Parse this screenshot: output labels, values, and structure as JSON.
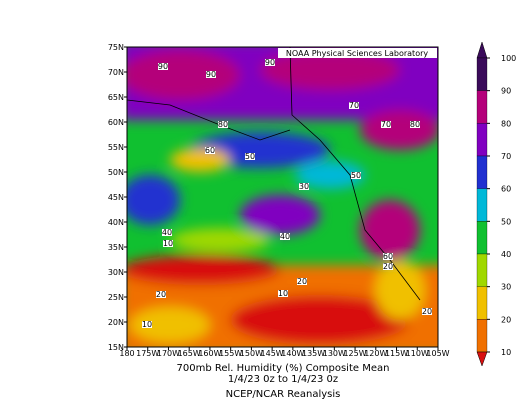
{
  "header": {
    "credit": "NOAA Physical Sciences Laboratory"
  },
  "map": {
    "lat_labels": [
      "75N",
      "70N",
      "65N",
      "60N",
      "55N",
      "50N",
      "45N",
      "40N",
      "35N",
      "30N",
      "25N",
      "20N",
      "15N"
    ],
    "lon_labels": [
      "180",
      "175W",
      "170W",
      "165W",
      "160W",
      "155W",
      "150W",
      "145W",
      "140W",
      "135W",
      "130W",
      "125W",
      "120W",
      "115W",
      "110W",
      "105W"
    ],
    "contour_labels": [
      "90",
      "90",
      "90",
      "70",
      "80",
      "60",
      "50",
      "30",
      "50",
      "40",
      "10",
      "40",
      "20",
      "10",
      "10",
      "20",
      "60",
      "20",
      "20",
      "70",
      "80"
    ]
  },
  "colorbar": {
    "ticks": [
      100,
      90,
      80,
      70,
      60,
      50,
      40,
      30,
      20,
      10
    ],
    "colors": [
      "#3a0a5a",
      "#b4007a",
      "#8000c0",
      "#2030d0",
      "#00b8d8",
      "#10c030",
      "#a0d800",
      "#f0c000",
      "#f07000",
      "#d81010"
    ]
  },
  "caption": {
    "line1": "700mb Rel. Humidity (%)   Composite Mean",
    "line2": "1/4/23 0z  to 1/4/23 0z",
    "line3": "NCEP/NCAR Reanalysis"
  }
}
